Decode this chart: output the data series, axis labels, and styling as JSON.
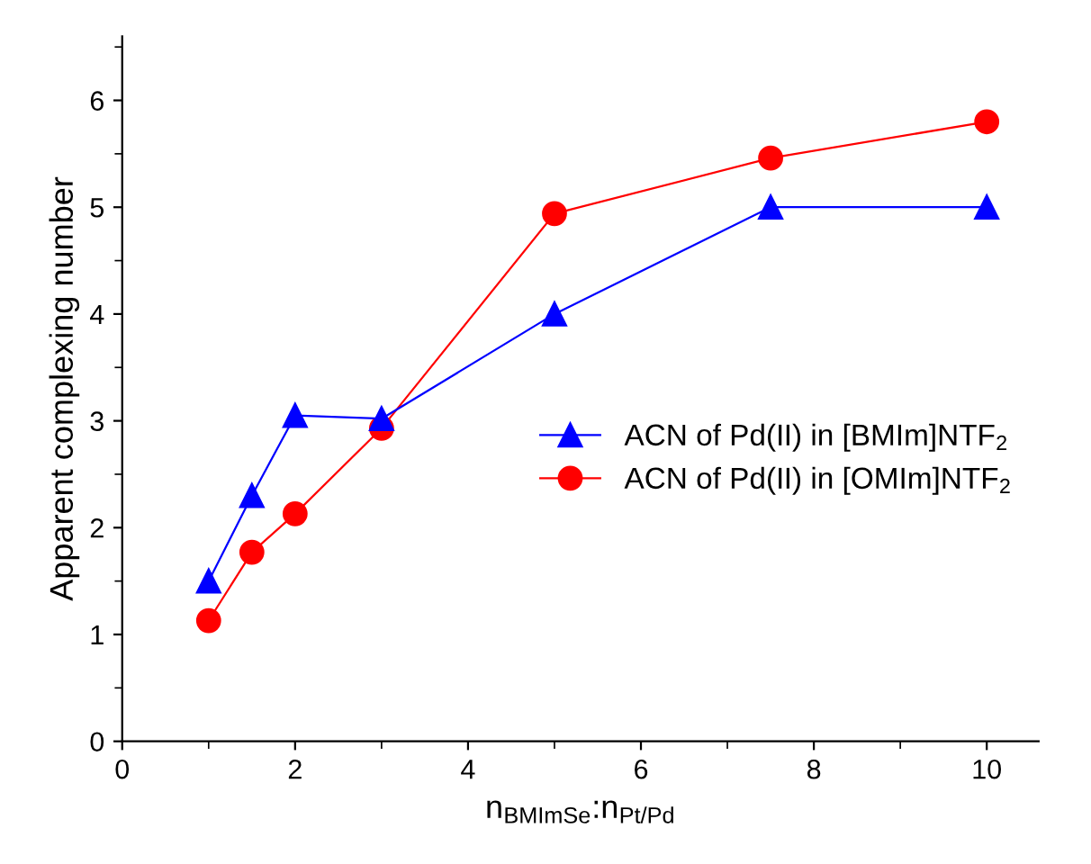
{
  "chart_data": {
    "type": "line",
    "xlabel": "n$_{BMImSe}$:n$_{Pt/Pd}$",
    "ylabel": "Apparent complexing number",
    "x": [
      1,
      1.5,
      2,
      3,
      5,
      7.5,
      10
    ],
    "series": [
      {
        "name": "ACN of Pd(II) in [BMIm]NTF$_{2}$",
        "color": "#0000ff",
        "marker": "triangle",
        "values": [
          1.5,
          2.3,
          3.05,
          3.02,
          4.0,
          5.0,
          5.0
        ]
      },
      {
        "name": "ACN of Pd(II) in [OMIm]NTF$_{2}$",
        "color": "#ff0000",
        "marker": "circle",
        "values": [
          1.13,
          1.77,
          2.13,
          2.93,
          4.94,
          5.46,
          5.8
        ]
      }
    ],
    "xlim": [
      0,
      10.6
    ],
    "ylim": [
      0,
      6.6
    ],
    "xticks": [
      0,
      2,
      4,
      6,
      8,
      10
    ],
    "yticks": [
      0,
      1,
      2,
      3,
      4,
      5,
      6
    ],
    "legend": "right",
    "grid": false,
    "line_style": "solid"
  }
}
